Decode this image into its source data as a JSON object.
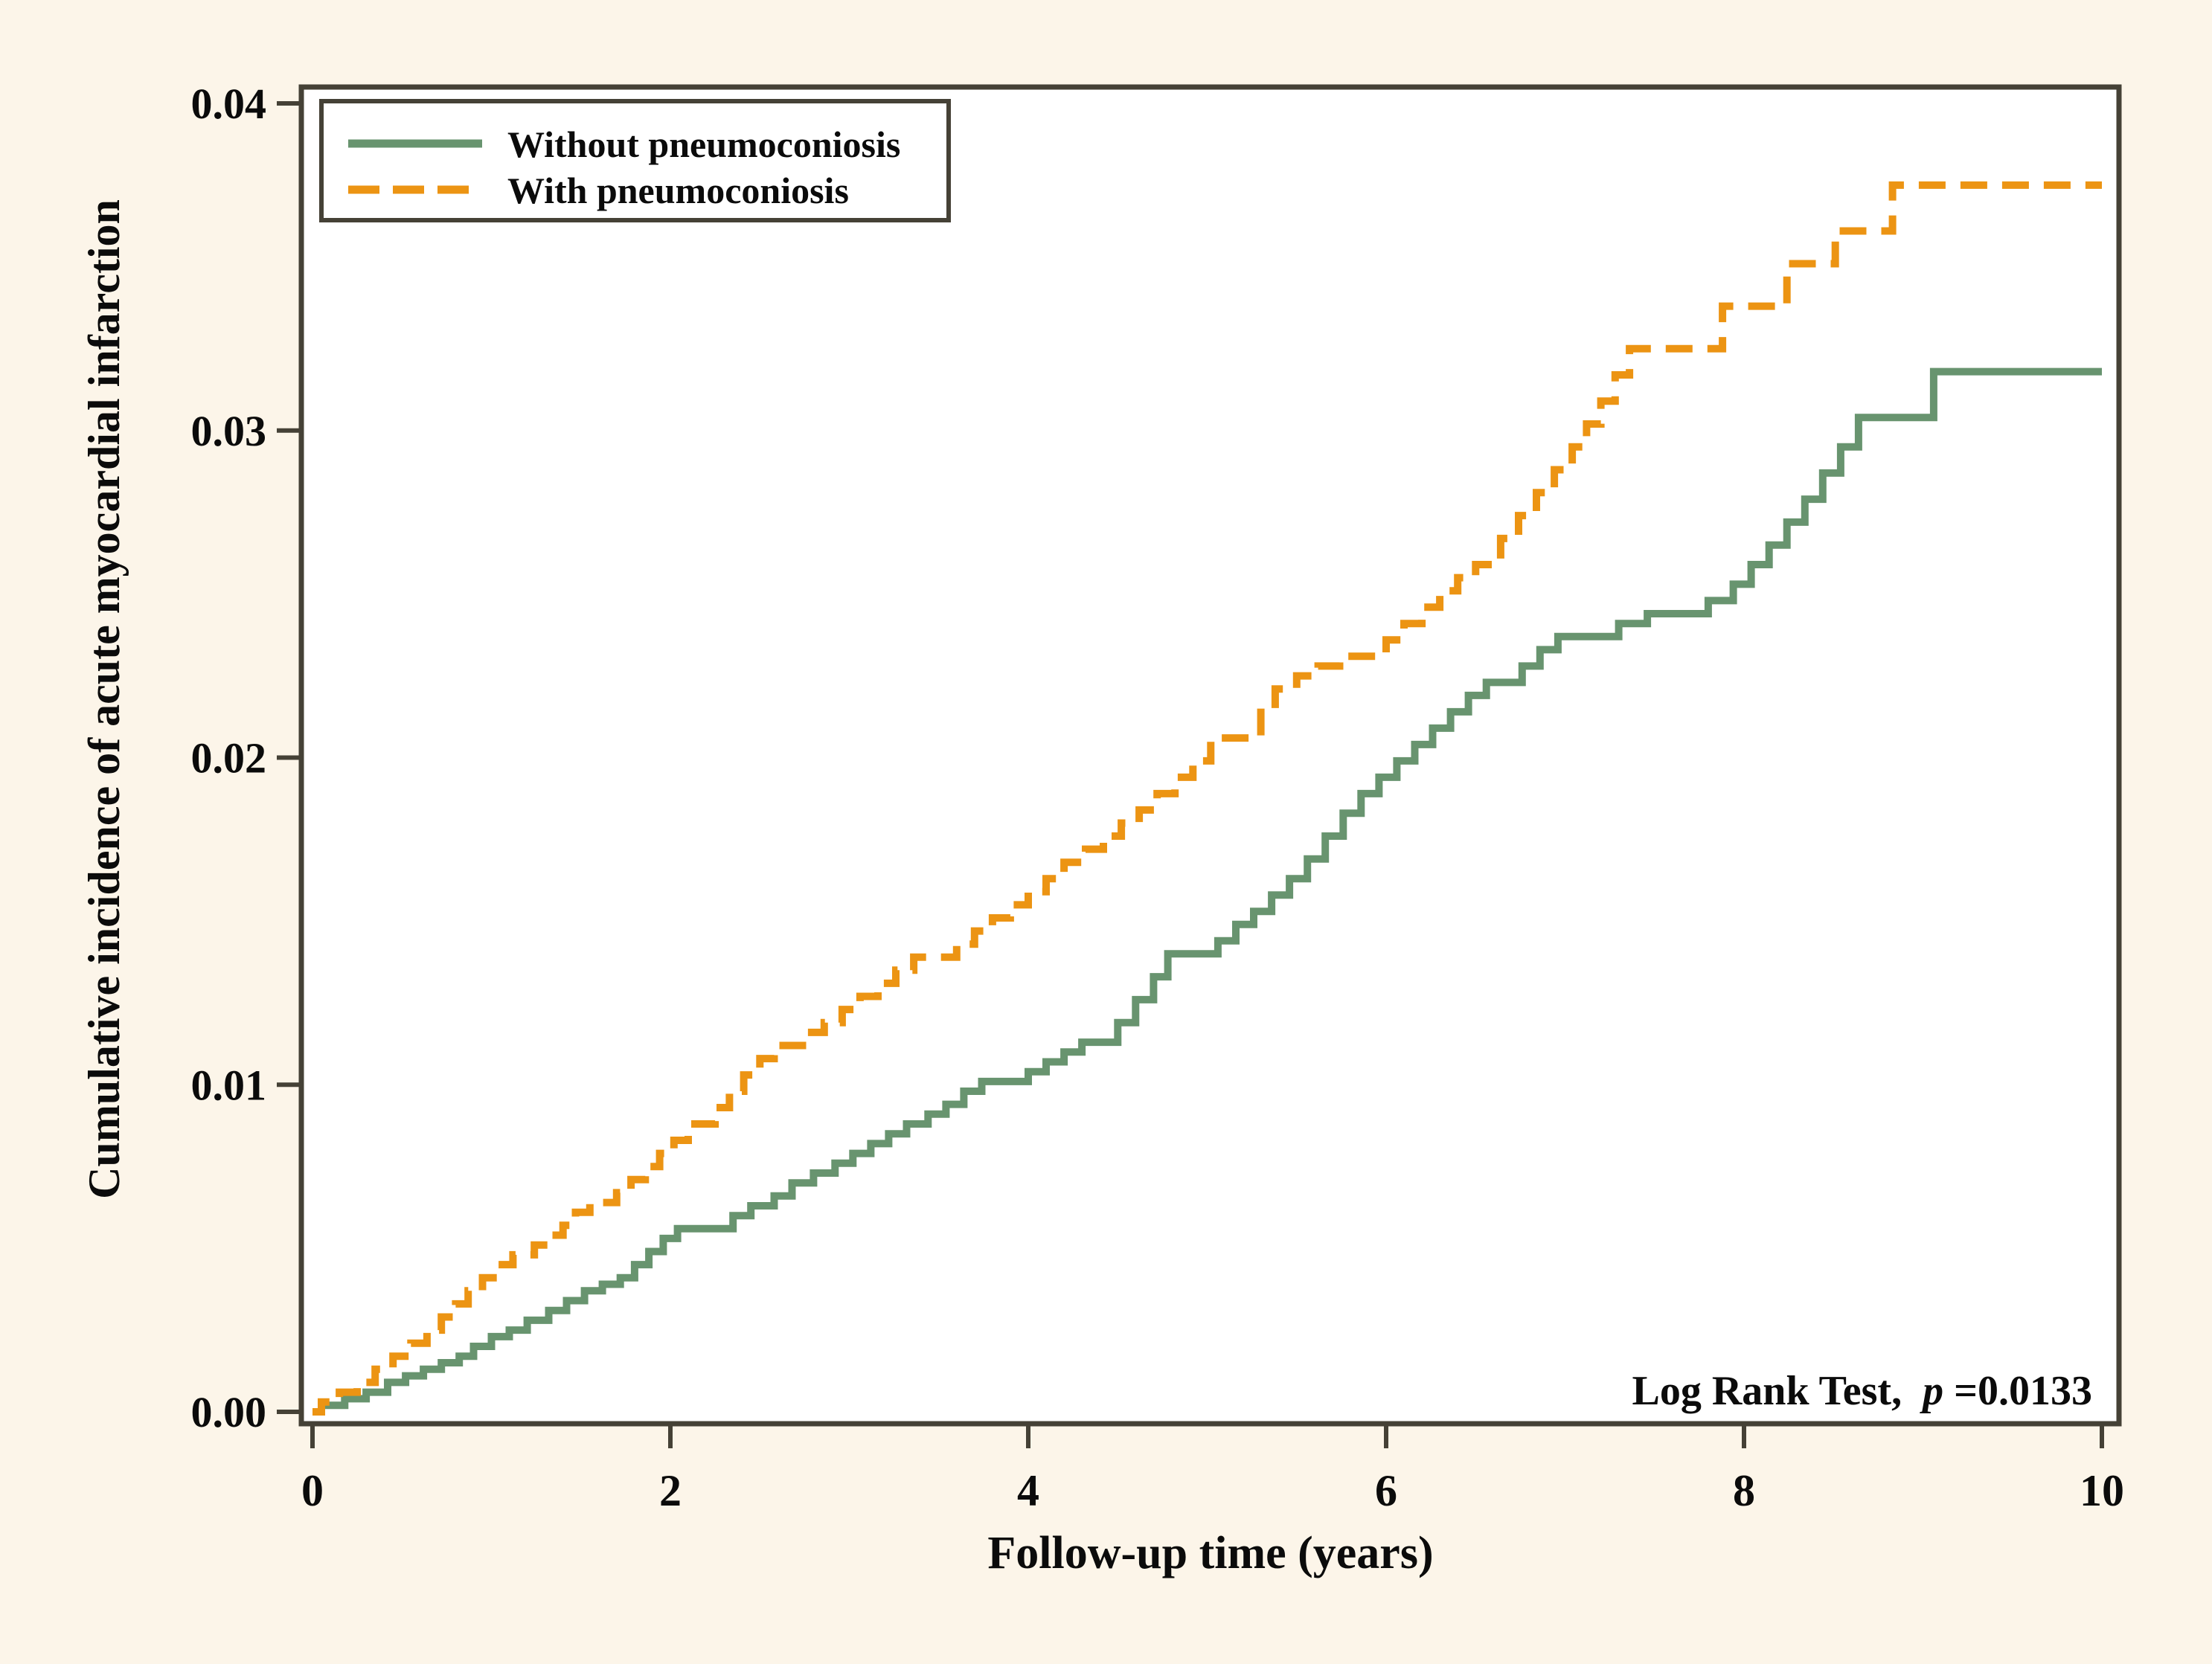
{
  "colors": {
    "background": "#FCF5E9",
    "plot_background": "#FFFFFF",
    "frame": "#454136",
    "text": "#0b0b0b",
    "series_without": "#68946F",
    "series_with": "#EC9413"
  },
  "annotation": {
    "prefix": "Log Rank Test,",
    "p_symbol": "p",
    "value": "=0.0133"
  },
  "chart_data": {
    "type": "line",
    "subtype": "step-hv-cumulative-incidence",
    "title": "",
    "xlabel": "Follow-up time (years)",
    "ylabel": "Cumulative incidence of acute myocardial infarction",
    "xlim": [
      0,
      10
    ],
    "ylim": [
      0.0,
      0.04
    ],
    "x_ticks": [
      0,
      2,
      4,
      6,
      8,
      10
    ],
    "y_ticks": [
      "0.00",
      "0.01",
      "0.02",
      "0.03",
      "0.04"
    ],
    "grid": false,
    "legend_position": "top-left",
    "annotation_text": "Log Rank Test, p=0.0133",
    "series": [
      {
        "name": "Without pneumoconiosis",
        "color": "#68946F",
        "style": "solid",
        "final_value": 0.0318,
        "points": [
          [
            0,
            0
          ],
          [
            0.05,
            0.0002
          ],
          [
            0.18,
            0.0004
          ],
          [
            0.3,
            0.0006
          ],
          [
            0.42,
            0.0009
          ],
          [
            0.52,
            0.0011
          ],
          [
            0.62,
            0.0013
          ],
          [
            0.72,
            0.0015
          ],
          [
            0.82,
            0.0017
          ],
          [
            0.9,
            0.002
          ],
          [
            1.0,
            0.0023
          ],
          [
            1.1,
            0.0025
          ],
          [
            1.2,
            0.0028
          ],
          [
            1.32,
            0.0031
          ],
          [
            1.42,
            0.0034
          ],
          [
            1.52,
            0.0037
          ],
          [
            1.62,
            0.0039
          ],
          [
            1.72,
            0.0041
          ],
          [
            1.8,
            0.0045
          ],
          [
            1.88,
            0.0049
          ],
          [
            1.96,
            0.0053
          ],
          [
            2.04,
            0.0056
          ],
          [
            2.35,
            0.006
          ],
          [
            2.45,
            0.0063
          ],
          [
            2.58,
            0.0066
          ],
          [
            2.68,
            0.007
          ],
          [
            2.8,
            0.0073
          ],
          [
            2.92,
            0.0076
          ],
          [
            3.02,
            0.0079
          ],
          [
            3.12,
            0.0082
          ],
          [
            3.22,
            0.0085
          ],
          [
            3.32,
            0.0088
          ],
          [
            3.44,
            0.0091
          ],
          [
            3.54,
            0.0094
          ],
          [
            3.64,
            0.0098
          ],
          [
            3.74,
            0.0101
          ],
          [
            4.0,
            0.0104
          ],
          [
            4.1,
            0.0107
          ],
          [
            4.2,
            0.011
          ],
          [
            4.3,
            0.0113
          ],
          [
            4.5,
            0.0119
          ],
          [
            4.6,
            0.0126
          ],
          [
            4.7,
            0.0133
          ],
          [
            4.78,
            0.014
          ],
          [
            5.06,
            0.0144
          ],
          [
            5.16,
            0.0149
          ],
          [
            5.26,
            0.0153
          ],
          [
            5.36,
            0.0158
          ],
          [
            5.46,
            0.0163
          ],
          [
            5.56,
            0.0169
          ],
          [
            5.66,
            0.0176
          ],
          [
            5.76,
            0.0183
          ],
          [
            5.86,
            0.0189
          ],
          [
            5.96,
            0.0194
          ],
          [
            6.06,
            0.0199
          ],
          [
            6.16,
            0.0204
          ],
          [
            6.26,
            0.0209
          ],
          [
            6.36,
            0.0214
          ],
          [
            6.46,
            0.0219
          ],
          [
            6.56,
            0.0223
          ],
          [
            6.76,
            0.0228
          ],
          [
            6.86,
            0.0233
          ],
          [
            6.96,
            0.0237
          ],
          [
            7.3,
            0.0241
          ],
          [
            7.46,
            0.0244
          ],
          [
            7.8,
            0.0248
          ],
          [
            7.94,
            0.0253
          ],
          [
            8.04,
            0.0259
          ],
          [
            8.14,
            0.0265
          ],
          [
            8.24,
            0.0272
          ],
          [
            8.34,
            0.0279
          ],
          [
            8.44,
            0.0287
          ],
          [
            8.54,
            0.0295
          ],
          [
            8.64,
            0.0304
          ],
          [
            9.06,
            0.0318
          ]
        ]
      },
      {
        "name": "With pneumoconiosis",
        "color": "#EC9413",
        "style": "dashed",
        "final_value": 0.0375,
        "points": [
          [
            0,
            0
          ],
          [
            0.05,
            0.0003
          ],
          [
            0.15,
            0.0006
          ],
          [
            0.25,
            0.0009
          ],
          [
            0.35,
            0.0013
          ],
          [
            0.45,
            0.0017
          ],
          [
            0.55,
            0.0021
          ],
          [
            0.64,
            0.0025
          ],
          [
            0.72,
            0.0029
          ],
          [
            0.8,
            0.0033
          ],
          [
            0.87,
            0.0037
          ],
          [
            0.95,
            0.0041
          ],
          [
            1.03,
            0.0045
          ],
          [
            1.12,
            0.0048
          ],
          [
            1.24,
            0.0051
          ],
          [
            1.32,
            0.0054
          ],
          [
            1.4,
            0.0057
          ],
          [
            1.47,
            0.0061
          ],
          [
            1.55,
            0.0064
          ],
          [
            1.7,
            0.0067
          ],
          [
            1.78,
            0.0071
          ],
          [
            1.86,
            0.0075
          ],
          [
            1.94,
            0.0079
          ],
          [
            2.02,
            0.0083
          ],
          [
            2.1,
            0.0088
          ],
          [
            2.25,
            0.0093
          ],
          [
            2.33,
            0.0098
          ],
          [
            2.41,
            0.0103
          ],
          [
            2.5,
            0.0108
          ],
          [
            2.58,
            0.0112
          ],
          [
            2.76,
            0.0116
          ],
          [
            2.86,
            0.0119
          ],
          [
            2.96,
            0.0123
          ],
          [
            3.06,
            0.0127
          ],
          [
            3.16,
            0.0131
          ],
          [
            3.26,
            0.0135
          ],
          [
            3.36,
            0.0139
          ],
          [
            3.6,
            0.0143
          ],
          [
            3.7,
            0.0147
          ],
          [
            3.8,
            0.0151
          ],
          [
            3.9,
            0.0155
          ],
          [
            4.0,
            0.0159
          ],
          [
            4.1,
            0.0163
          ],
          [
            4.2,
            0.0168
          ],
          [
            4.32,
            0.0172
          ],
          [
            4.42,
            0.0176
          ],
          [
            4.52,
            0.018
          ],
          [
            4.62,
            0.0184
          ],
          [
            4.72,
            0.0189
          ],
          [
            4.82,
            0.0194
          ],
          [
            4.92,
            0.0199
          ],
          [
            5.02,
            0.0206
          ],
          [
            5.3,
            0.0215
          ],
          [
            5.38,
            0.0221
          ],
          [
            5.5,
            0.0225
          ],
          [
            5.62,
            0.0228
          ],
          [
            5.74,
            0.0231
          ],
          [
            6.0,
            0.0236
          ],
          [
            6.1,
            0.0241
          ],
          [
            6.2,
            0.0246
          ],
          [
            6.3,
            0.0251
          ],
          [
            6.4,
            0.0255
          ],
          [
            6.5,
            0.0259
          ],
          [
            6.64,
            0.0267
          ],
          [
            6.74,
            0.0274
          ],
          [
            6.84,
            0.0281
          ],
          [
            6.94,
            0.0288
          ],
          [
            7.04,
            0.0295
          ],
          [
            7.12,
            0.0302
          ],
          [
            7.2,
            0.0309
          ],
          [
            7.28,
            0.0317
          ],
          [
            7.36,
            0.0325
          ],
          [
            7.88,
            0.0338
          ],
          [
            8.24,
            0.0351
          ],
          [
            8.51,
            0.0361
          ],
          [
            8.83,
            0.0375
          ]
        ]
      }
    ]
  }
}
